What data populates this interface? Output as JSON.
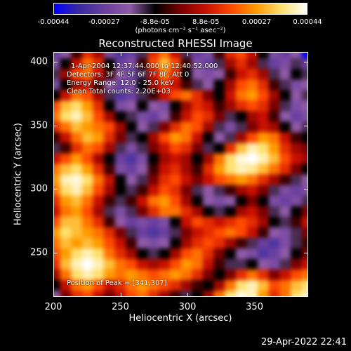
{
  "colorbar": {
    "ticks": [
      "-0.00044",
      "-0.00027",
      "-8.8e-05",
      "8.8e-05",
      "0.00027",
      "0.00044"
    ],
    "units": "(photons cm⁻² s⁻¹ asec⁻²)"
  },
  "info": {
    "time_range": "1-Apr-2004 12:37:44.000 to 12:40:52.000",
    "detectors": "Detectors: 3F 4F 5F 6F 7F 8F, Att 0",
    "energy_range": "Energy Range: 12.0 - 25.0 keV",
    "clean": "Clean    Total counts: 2.20E+03",
    "peak": "Position of Peak = [341,307]"
  },
  "footer": {
    "timestamp": "29-Apr-2022 22:41"
  },
  "chart_data": {
    "type": "heatmap",
    "title": "Reconstructed RHESSI Image",
    "xlabel": "Heliocentric X (arcsec)",
    "ylabel": "Heliocentric Y (arcsec)",
    "xlim": [
      200,
      390
    ],
    "ylim": [
      215,
      408
    ],
    "x_ticks": [
      200,
      250,
      300,
      350
    ],
    "y_ticks": [
      250,
      300,
      350,
      400
    ],
    "zlim": [
      -0.00044,
      0.00044
    ],
    "peak_position": [
      341,
      307
    ],
    "colormap": [
      "#0000ff",
      "#3a2a9e",
      "#6a3fa0",
      "#8f5aa8",
      "#000000",
      "#7a0000",
      "#c81000",
      "#ff4a00",
      "#ff9a00",
      "#ffe070",
      "#ffffff"
    ],
    "nx": 24,
    "ny": 24,
    "values": [
      [
        -0.6,
        -0.4,
        -0.1,
        0.3,
        0.1,
        -0.5,
        -0.7,
        -0.6,
        -0.3,
        0.3,
        0.5,
        0.2,
        -0.3,
        -0.6,
        -0.5,
        -0.1,
        0.3,
        0.4,
        0.2,
        -0.2,
        -0.5,
        -0.6,
        -0.4,
        -1.0
      ],
      [
        -0.5,
        -0.2,
        0.2,
        0.5,
        0.3,
        -0.2,
        -0.6,
        -0.5,
        -0.1,
        0.4,
        0.7,
        0.4,
        -0.1,
        -0.5,
        -0.6,
        -0.3,
        0.1,
        0.3,
        0.1,
        -0.3,
        -0.6,
        -0.5,
        -0.3,
        -0.6
      ],
      [
        -0.3,
        0.1,
        0.4,
        0.5,
        0.2,
        -0.1,
        -0.4,
        -0.6,
        -0.3,
        0.2,
        0.5,
        0.3,
        -0.2,
        -0.4,
        -0.5,
        -0.4,
        -0.1,
        0.2,
        0.3,
        0.1,
        -0.3,
        -0.4,
        -0.2,
        -0.3
      ],
      [
        -0.5,
        -0.2,
        0.1,
        0.2,
        -0.1,
        -0.4,
        -0.6,
        -0.5,
        -0.2,
        0.1,
        0.3,
        0.2,
        -0.1,
        -0.3,
        -0.4,
        -0.2,
        0.1,
        0.4,
        0.5,
        0.3,
        -0.1,
        -0.3,
        -0.5,
        -0.4
      ],
      [
        -0.2,
        0.2,
        0.5,
        0.4,
        0.1,
        -0.3,
        -0.7,
        -0.6,
        -0.3,
        -0.1,
        0.2,
        0.4,
        0.5,
        0.3,
        0.0,
        -0.2,
        0.2,
        0.5,
        0.6,
        0.4,
        0.1,
        -0.2,
        -0.4,
        -0.3
      ],
      [
        0.4,
        0.7,
        0.8,
        0.6,
        0.3,
        -0.2,
        -0.5,
        -0.4,
        -0.2,
        -0.4,
        -0.5,
        -0.2,
        0.1,
        0.3,
        0.2,
        -0.1,
        0.1,
        0.3,
        0.4,
        0.3,
        0.0,
        -0.3,
        -0.5,
        -0.4
      ],
      [
        0.5,
        0.8,
        0.9,
        0.7,
        0.4,
        0.1,
        -0.2,
        -0.3,
        -0.5,
        -0.6,
        -0.4,
        -0.1,
        0.2,
        0.4,
        0.3,
        0.0,
        -0.3,
        -0.2,
        0.1,
        0.2,
        -0.1,
        -0.4,
        -0.6,
        -0.5
      ],
      [
        0.3,
        0.5,
        0.7,
        0.6,
        0.5,
        0.4,
        0.1,
        -0.2,
        -0.4,
        -0.3,
        0.0,
        0.3,
        0.5,
        0.4,
        0.1,
        -0.3,
        -0.5,
        -0.3,
        0.0,
        0.2,
        0.1,
        -0.2,
        -0.4,
        -0.3
      ],
      [
        -0.1,
        0.2,
        0.5,
        0.7,
        0.6,
        0.3,
        0.0,
        -0.3,
        -0.2,
        0.1,
        0.4,
        0.6,
        0.5,
        0.2,
        -0.2,
        -0.4,
        -0.3,
        0.1,
        0.4,
        0.6,
        0.5,
        0.2,
        -0.1,
        -0.2
      ],
      [
        -0.3,
        -0.1,
        0.3,
        0.5,
        0.4,
        0.1,
        -0.3,
        -0.5,
        -0.3,
        0.0,
        0.2,
        0.4,
        0.3,
        0.0,
        -0.3,
        -0.2,
        0.3,
        0.7,
        0.9,
        0.8,
        0.6,
        0.3,
        0.1,
        0.0
      ],
      [
        0.2,
        0.4,
        0.6,
        0.4,
        0.1,
        -0.2,
        -0.6,
        -0.7,
        -0.5,
        -0.2,
        0.1,
        0.2,
        0.1,
        -0.2,
        0.1,
        0.5,
        0.8,
        0.95,
        1.0,
        0.9,
        0.7,
        0.4,
        0.2,
        0.1
      ],
      [
        0.5,
        0.7,
        0.8,
        0.6,
        0.3,
        -0.1,
        -0.5,
        -0.6,
        -0.4,
        -0.1,
        0.2,
        0.3,
        0.1,
        -0.1,
        0.3,
        0.6,
        0.8,
        0.9,
        0.85,
        0.7,
        0.5,
        0.3,
        0.0,
        -0.2
      ],
      [
        0.6,
        0.9,
        0.95,
        0.8,
        0.5,
        0.2,
        -0.2,
        -0.4,
        -0.3,
        0.0,
        0.3,
        0.4,
        0.2,
        0.0,
        0.2,
        0.4,
        0.5,
        0.6,
        0.5,
        0.3,
        0.1,
        -0.1,
        -0.3,
        -0.4
      ],
      [
        0.5,
        0.8,
        0.9,
        0.7,
        0.4,
        0.1,
        -0.2,
        -0.3,
        -0.1,
        0.2,
        0.4,
        0.3,
        0.0,
        -0.3,
        -0.4,
        -0.3,
        -0.1,
        0.1,
        0.2,
        0.0,
        -0.3,
        -0.5,
        -0.6,
        -0.5
      ],
      [
        0.3,
        0.6,
        0.7,
        0.5,
        0.2,
        -0.1,
        -0.3,
        -0.1,
        0.2,
        0.5,
        0.6,
        0.4,
        0.1,
        -0.2,
        -0.4,
        -0.5,
        -0.4,
        -0.2,
        0.0,
        -0.2,
        -0.5,
        -0.6,
        -0.5,
        -0.3
      ],
      [
        0.2,
        0.5,
        0.6,
        0.4,
        0.1,
        -0.3,
        -0.5,
        -0.3,
        0.0,
        0.3,
        0.5,
        0.5,
        0.3,
        0.1,
        -0.2,
        -0.3,
        -0.2,
        0.1,
        0.2,
        0.0,
        -0.3,
        -0.4,
        -0.2,
        0.0
      ],
      [
        0.4,
        0.7,
        0.7,
        0.5,
        0.3,
        -0.1,
        -0.4,
        -0.6,
        -0.5,
        -0.6,
        -0.5,
        -0.2,
        0.2,
        0.4,
        0.3,
        0.2,
        0.3,
        0.4,
        0.3,
        0.1,
        -0.2,
        -0.3,
        -0.1,
        0.2
      ],
      [
        0.6,
        0.8,
        0.7,
        0.6,
        0.5,
        0.3,
        0.0,
        -0.3,
        -0.6,
        -0.7,
        -0.6,
        -0.3,
        0.0,
        0.2,
        0.3,
        0.4,
        0.5,
        0.4,
        0.2,
        -0.1,
        -0.4,
        -0.5,
        -0.3,
        0.0
      ],
      [
        0.5,
        0.7,
        0.6,
        0.7,
        0.6,
        0.4,
        0.2,
        -0.1,
        -0.4,
        -0.5,
        -0.4,
        -0.2,
        0.1,
        0.3,
        0.4,
        0.3,
        0.1,
        -0.1,
        -0.3,
        -0.6,
        -0.7,
        -0.5,
        -0.3,
        -0.1
      ],
      [
        0.4,
        0.6,
        0.8,
        0.9,
        0.8,
        0.5,
        0.3,
        0.1,
        -0.2,
        -0.3,
        -0.2,
        0.1,
        0.4,
        0.5,
        0.3,
        0.0,
        -0.2,
        -0.4,
        -0.5,
        -0.7,
        -0.6,
        -0.4,
        -0.2,
        0.0
      ],
      [
        0.3,
        0.7,
        0.9,
        1.0,
        0.9,
        0.7,
        0.5,
        0.4,
        0.2,
        0.1,
        0.2,
        0.4,
        0.6,
        0.5,
        0.2,
        -0.1,
        -0.3,
        -0.3,
        -0.2,
        -0.4,
        -0.5,
        -0.3,
        0.0,
        0.2
      ],
      [
        0.1,
        0.5,
        0.8,
        0.9,
        0.8,
        0.6,
        0.5,
        0.6,
        0.5,
        0.4,
        0.5,
        0.6,
        0.5,
        0.3,
        0.0,
        -0.2,
        0.0,
        0.3,
        0.5,
        0.3,
        0.0,
        0.2,
        0.4,
        0.5
      ],
      [
        -0.2,
        0.2,
        0.5,
        0.6,
        0.4,
        0.2,
        0.3,
        0.5,
        0.6,
        0.5,
        0.4,
        0.3,
        0.1,
        -0.1,
        -0.2,
        0.1,
        0.5,
        0.8,
        0.9,
        0.7,
        0.4,
        0.5,
        0.7,
        0.8
      ],
      [
        -0.4,
        0.0,
        0.3,
        0.4,
        0.2,
        0.0,
        0.2,
        0.4,
        0.5,
        0.3,
        0.1,
        -0.1,
        -0.3,
        -0.2,
        0.1,
        0.5,
        0.8,
        0.95,
        0.9,
        0.6,
        0.3,
        0.5,
        0.8,
        0.9
      ]
    ]
  }
}
